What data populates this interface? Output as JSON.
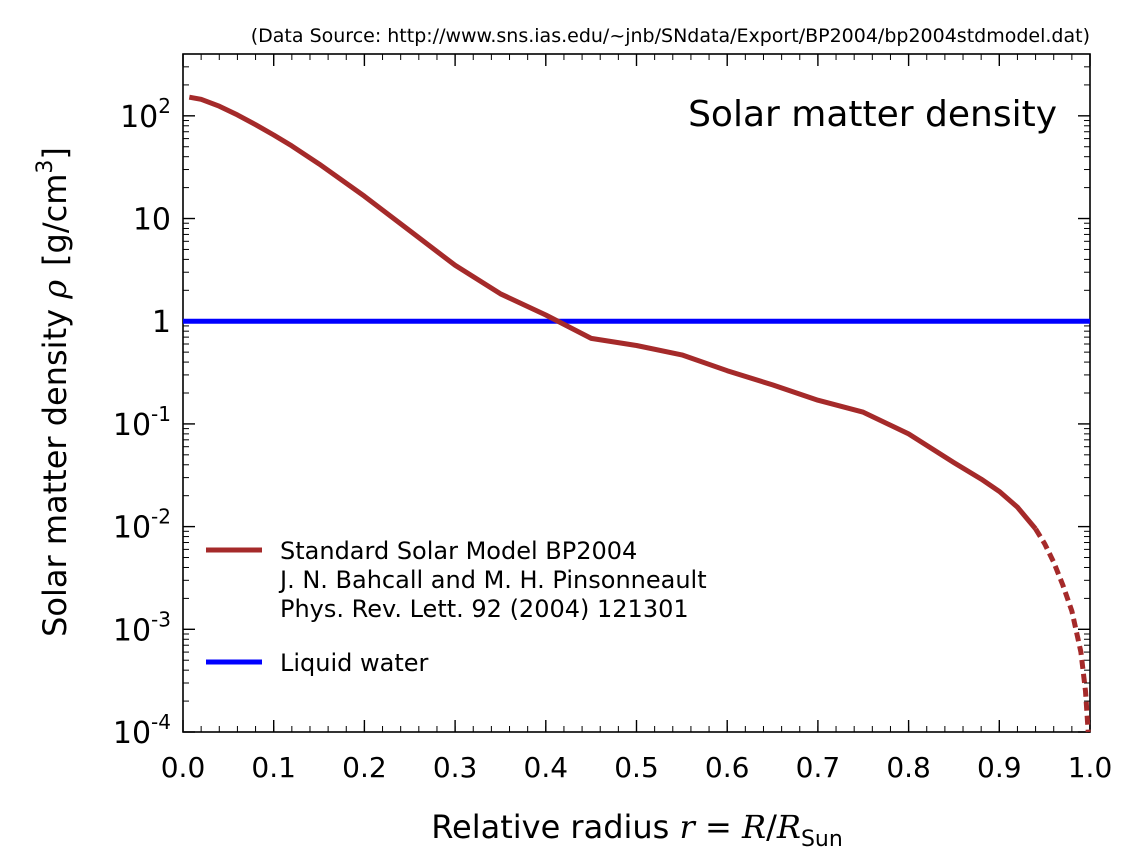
{
  "chart_data": {
    "type": "line",
    "source_note": "(Data Source: http://www.sns.ias.edu/~jnb/SNdata/Export/BP2004/bp2004stdmodel.dat)",
    "title": "Solar matter density",
    "xlabel": {
      "prefix": "Relative radius ",
      "r": "r",
      "equals": " = ",
      "R": "R",
      "slash": "/",
      "sub": "Sun"
    },
    "ylabel": {
      "text": "Solar matter density ",
      "rho": "ρ",
      "unit_open": "[g/cm",
      "unit_exp": "3",
      "unit_close": "]"
    },
    "x_scale": "linear",
    "y_scale": "log",
    "xlim": [
      0.0,
      1.0
    ],
    "ylim": [
      0.0001,
      400
    ],
    "x_ticks": [
      {
        "value": 0.0,
        "label": "0.0"
      },
      {
        "value": 0.1,
        "label": "0.1"
      },
      {
        "value": 0.2,
        "label": "0.2"
      },
      {
        "value": 0.3,
        "label": "0.3"
      },
      {
        "value": 0.4,
        "label": "0.4"
      },
      {
        "value": 0.5,
        "label": "0.5"
      },
      {
        "value": 0.6,
        "label": "0.6"
      },
      {
        "value": 0.7,
        "label": "0.7"
      },
      {
        "value": 0.8,
        "label": "0.8"
      },
      {
        "value": 0.9,
        "label": "0.9"
      },
      {
        "value": 1.0,
        "label": "1.0"
      }
    ],
    "y_ticks": [
      {
        "value": 100,
        "base": "10",
        "exp": "2"
      },
      {
        "value": 10,
        "base": "10",
        "exp": ""
      },
      {
        "value": 1,
        "base": "1",
        "exp": ""
      },
      {
        "value": 0.1,
        "base": "10",
        "exp": "-1"
      },
      {
        "value": 0.01,
        "base": "10",
        "exp": "-2"
      },
      {
        "value": 0.001,
        "base": "10",
        "exp": "-3"
      },
      {
        "value": 0.0001,
        "base": "10",
        "exp": "-4"
      }
    ],
    "grid": false,
    "legend_position": "lower-left",
    "series": [
      {
        "legend_lines": [
          "Standard Solar Model BP2004",
          "J. N. Bahcall and M. H. Pinsonneault",
          "Phys. Rev. Lett. 92 (2004) 121301"
        ],
        "color": "#a52a2a",
        "x": [
          0.007,
          0.02,
          0.04,
          0.06,
          0.08,
          0.1,
          0.12,
          0.15,
          0.2,
          0.25,
          0.3,
          0.35,
          0.4,
          0.45,
          0.5,
          0.55,
          0.6,
          0.65,
          0.7,
          0.75,
          0.8,
          0.85,
          0.88,
          0.9,
          0.92,
          0.94,
          0.95,
          0.96,
          0.97,
          0.98,
          0.99,
          0.995,
          0.998
        ],
        "y": [
          152,
          145,
          124,
          102,
          82,
          65,
          51,
          34,
          16.5,
          7.6,
          3.5,
          1.85,
          1.15,
          0.68,
          0.58,
          0.47,
          0.33,
          0.24,
          0.17,
          0.13,
          0.08,
          0.042,
          0.029,
          0.022,
          0.0155,
          0.0095,
          0.0068,
          0.0045,
          0.0027,
          0.0015,
          0.0006,
          0.00025,
          0.0001
        ]
      },
      {
        "legend_lines": [
          "Liquid water"
        ],
        "color": "#0000ff",
        "x": [
          0.0,
          1.0
        ],
        "y": [
          1.0,
          1.0
        ]
      }
    ]
  }
}
